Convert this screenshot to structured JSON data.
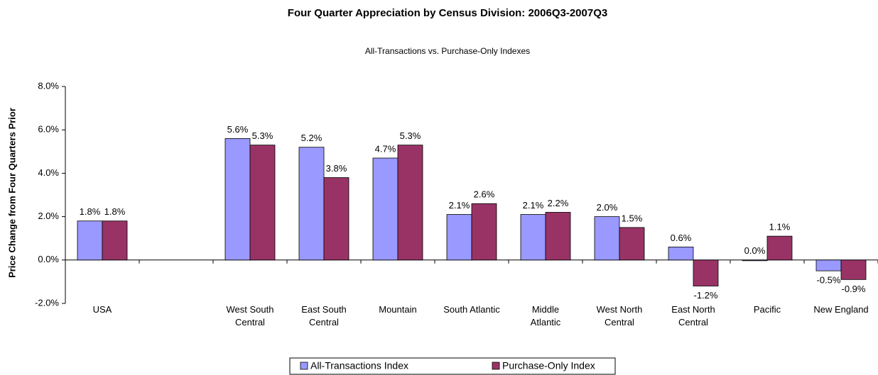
{
  "chart_data": {
    "type": "bar",
    "title": "Four Quarter Appreciation by Census Division: 2006Q3-2007Q3",
    "subtitle": "All-Transactions vs. Purchase-Only Indexes",
    "y_label": "Price Change from Four Quarters Prior",
    "categories": [
      "USA",
      null,
      "West South\nCentral",
      "East South\nCentral",
      "Mountain",
      "South Atlantic",
      "Middle\nAtlantic",
      "West North\nCentral",
      "East North\nCentral",
      "Pacific",
      "New England"
    ],
    "series": [
      {
        "name": "All-Transactions Index",
        "color": "#9999ff",
        "values": [
          1.8,
          null,
          5.6,
          5.2,
          4.7,
          2.1,
          2.1,
          2.0,
          0.6,
          0.0,
          -0.5
        ],
        "value_labels": [
          "1.8%",
          null,
          "5.6%",
          "5.2%",
          "4.7%",
          "2.1%",
          "2.1%",
          "2.0%",
          "0.6%",
          "0.0%",
          "-0.5%"
        ]
      },
      {
        "name": "Purchase-Only Index",
        "color": "#993366",
        "values": [
          1.8,
          null,
          5.3,
          3.8,
          5.3,
          2.6,
          2.2,
          1.5,
          -1.2,
          1.1,
          -0.9
        ],
        "value_labels": [
          "1.8%",
          null,
          "5.3%",
          "3.8%",
          "5.3%",
          "2.6%",
          "2.2%",
          "1.5%",
          "-1.2%",
          "1.1%",
          "-0.9%"
        ]
      }
    ],
    "ylim": [
      -2,
      8
    ],
    "yticks": [
      {
        "value": -2,
        "label": "-2.0%"
      },
      {
        "value": 0,
        "label": "0.0%"
      },
      {
        "value": 2,
        "label": "2.0%"
      },
      {
        "value": 4,
        "label": "4.0%"
      },
      {
        "value": 6,
        "label": "6.0%"
      },
      {
        "value": 8,
        "label": "8.0%"
      }
    ],
    "legend": "bottom"
  }
}
